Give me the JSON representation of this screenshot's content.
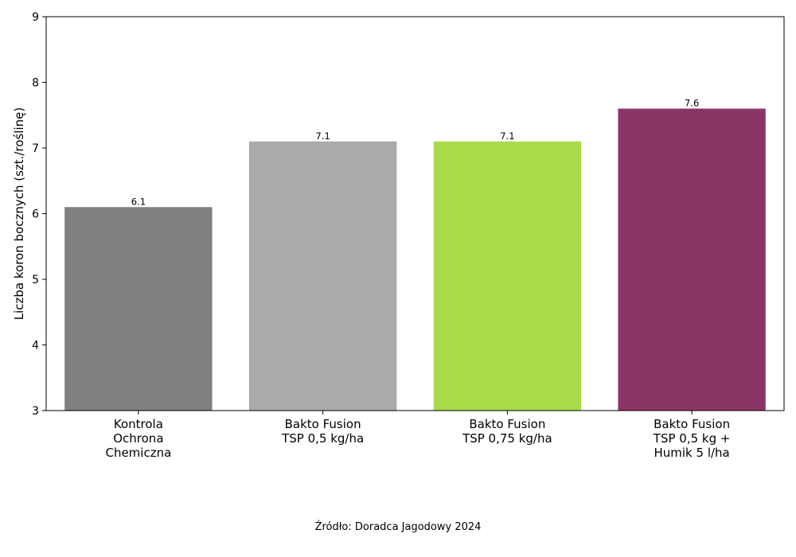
{
  "chart_data": {
    "type": "bar",
    "categories": [
      [
        "Kontrola",
        "Ochrona",
        "Chemiczna"
      ],
      [
        "Bakto Fusion",
        "TSP 0,5 kg/ha"
      ],
      [
        "Bakto Fusion",
        "TSP 0,75 kg/ha"
      ],
      [
        "Bakto Fusion",
        "TSP 0,5 kg +",
        "Humik 5 l/ha"
      ]
    ],
    "values": [
      6.1,
      7.1,
      7.1,
      7.6
    ],
    "value_labels": [
      "6.1",
      "7.1",
      "7.1",
      "7.6"
    ],
    "colors": [
      "#808080",
      "#aaaaaa",
      "#a8db48",
      "#8b3566"
    ],
    "ylabel": "Liczba koron bocznych (szt./roślinę)",
    "xlabel": "",
    "ylim": [
      3,
      9
    ],
    "yticks": [
      3,
      4,
      5,
      6,
      7,
      8,
      9
    ],
    "grid": false,
    "legend": "none"
  },
  "source": "Źródło: Doradca Jagodowy 2024"
}
